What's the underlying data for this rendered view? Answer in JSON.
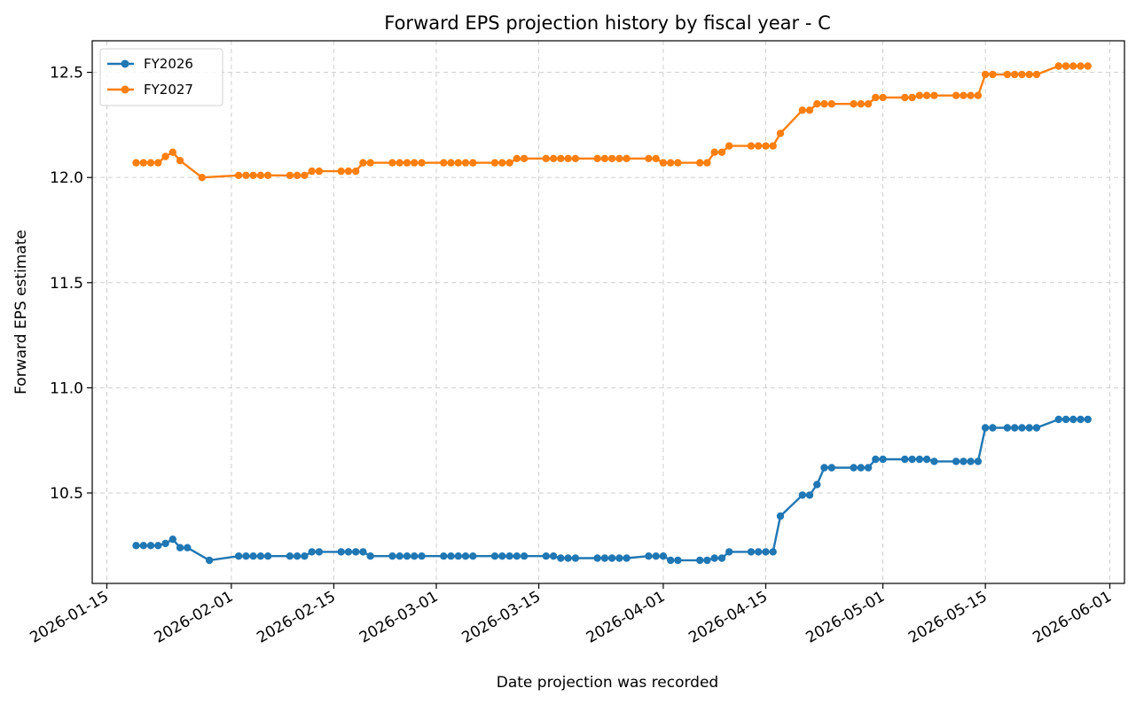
{
  "chart_data": {
    "type": "line",
    "title": "Forward EPS projection history by fiscal year - C",
    "xlabel": "Date projection was recorded",
    "ylabel": "Forward EPS estimate",
    "x_type": "date",
    "xlim": [
      "2026-01-13",
      "2026-06-03"
    ],
    "ylim": [
      10.07,
      12.65
    ],
    "x_ticks": [
      "2026-01-15",
      "2026-02-01",
      "2026-02-15",
      "2026-03-01",
      "2026-03-15",
      "2026-04-01",
      "2026-04-15",
      "2026-05-01",
      "2026-05-15",
      "2026-06-01"
    ],
    "y_ticks": [
      10.5,
      11.0,
      11.5,
      12.0,
      12.5
    ],
    "y_tick_labels": [
      "10.5",
      "11.0",
      "11.5",
      "12.0",
      "12.5"
    ],
    "grid": true,
    "legend_position": "top-left",
    "series": [
      {
        "name": "FY2026",
        "color": "#1f77b4",
        "x": [
          "2026-01-19",
          "2026-01-20",
          "2026-01-21",
          "2026-01-22",
          "2026-01-23",
          "2026-01-24",
          "2026-01-25",
          "2026-01-26",
          "2026-01-29",
          "2026-02-02",
          "2026-02-03",
          "2026-02-04",
          "2026-02-05",
          "2026-02-06",
          "2026-02-09",
          "2026-02-10",
          "2026-02-11",
          "2026-02-12",
          "2026-02-13",
          "2026-02-16",
          "2026-02-17",
          "2026-02-18",
          "2026-02-19",
          "2026-02-20",
          "2026-02-23",
          "2026-02-24",
          "2026-02-25",
          "2026-02-26",
          "2026-02-27",
          "2026-03-02",
          "2026-03-03",
          "2026-03-04",
          "2026-03-05",
          "2026-03-06",
          "2026-03-09",
          "2026-03-10",
          "2026-03-11",
          "2026-03-12",
          "2026-03-13",
          "2026-03-16",
          "2026-03-17",
          "2026-03-18",
          "2026-03-19",
          "2026-03-20",
          "2026-03-23",
          "2026-03-24",
          "2026-03-25",
          "2026-03-26",
          "2026-03-27",
          "2026-03-30",
          "2026-03-31",
          "2026-04-01",
          "2026-04-02",
          "2026-04-03",
          "2026-04-06",
          "2026-04-07",
          "2026-04-08",
          "2026-04-09",
          "2026-04-10",
          "2026-04-13",
          "2026-04-14",
          "2026-04-15",
          "2026-04-16",
          "2026-04-17",
          "2026-04-20",
          "2026-04-21",
          "2026-04-22",
          "2026-04-23",
          "2026-04-24",
          "2026-04-27",
          "2026-04-28",
          "2026-04-29",
          "2026-04-30",
          "2026-05-01",
          "2026-05-04",
          "2026-05-05",
          "2026-05-06",
          "2026-05-07",
          "2026-05-08",
          "2026-05-11",
          "2026-05-12",
          "2026-05-13",
          "2026-05-14",
          "2026-05-15",
          "2026-05-16",
          "2026-05-18",
          "2026-05-19",
          "2026-05-20",
          "2026-05-21",
          "2026-05-22",
          "2026-05-25",
          "2026-05-26",
          "2026-05-27",
          "2026-05-28",
          "2026-05-29"
        ],
        "values": [
          10.25,
          10.25,
          10.25,
          10.25,
          10.26,
          10.28,
          10.24,
          10.24,
          10.18,
          10.2,
          10.2,
          10.2,
          10.2,
          10.2,
          10.2,
          10.2,
          10.2,
          10.22,
          10.22,
          10.22,
          10.22,
          10.22,
          10.22,
          10.2,
          10.2,
          10.2,
          10.2,
          10.2,
          10.2,
          10.2,
          10.2,
          10.2,
          10.2,
          10.2,
          10.2,
          10.2,
          10.2,
          10.2,
          10.2,
          10.2,
          10.2,
          10.19,
          10.19,
          10.19,
          10.19,
          10.19,
          10.19,
          10.19,
          10.19,
          10.2,
          10.2,
          10.2,
          10.18,
          10.18,
          10.18,
          10.18,
          10.19,
          10.19,
          10.22,
          10.22,
          10.22,
          10.22,
          10.22,
          10.39,
          10.49,
          10.49,
          10.54,
          10.62,
          10.62,
          10.62,
          10.62,
          10.62,
          10.66,
          10.66,
          10.66,
          10.66,
          10.66,
          10.66,
          10.65,
          10.65,
          10.65,
          10.65,
          10.65,
          10.81,
          10.81,
          10.81,
          10.81,
          10.81,
          10.81,
          10.81,
          10.85,
          10.85,
          10.85,
          10.85,
          10.85
        ]
      },
      {
        "name": "FY2027",
        "color": "#ff7f0e",
        "x": [
          "2026-01-19",
          "2026-01-20",
          "2026-01-21",
          "2026-01-22",
          "2026-01-23",
          "2026-01-24",
          "2026-01-25",
          "2026-01-28",
          "2026-02-02",
          "2026-02-03",
          "2026-02-04",
          "2026-02-05",
          "2026-02-06",
          "2026-02-09",
          "2026-02-10",
          "2026-02-11",
          "2026-02-12",
          "2026-02-13",
          "2026-02-16",
          "2026-02-17",
          "2026-02-18",
          "2026-02-19",
          "2026-02-20",
          "2026-02-23",
          "2026-02-24",
          "2026-02-25",
          "2026-02-26",
          "2026-02-27",
          "2026-03-02",
          "2026-03-03",
          "2026-03-04",
          "2026-03-05",
          "2026-03-06",
          "2026-03-09",
          "2026-03-10",
          "2026-03-11",
          "2026-03-12",
          "2026-03-13",
          "2026-03-16",
          "2026-03-17",
          "2026-03-18",
          "2026-03-19",
          "2026-03-20",
          "2026-03-23",
          "2026-03-24",
          "2026-03-25",
          "2026-03-26",
          "2026-03-27",
          "2026-03-30",
          "2026-03-31",
          "2026-04-01",
          "2026-04-02",
          "2026-04-03",
          "2026-04-06",
          "2026-04-07",
          "2026-04-08",
          "2026-04-09",
          "2026-04-10",
          "2026-04-13",
          "2026-04-14",
          "2026-04-15",
          "2026-04-16",
          "2026-04-17",
          "2026-04-20",
          "2026-04-21",
          "2026-04-22",
          "2026-04-23",
          "2026-04-24",
          "2026-04-27",
          "2026-04-28",
          "2026-04-29",
          "2026-04-30",
          "2026-05-01",
          "2026-05-04",
          "2026-05-05",
          "2026-05-06",
          "2026-05-07",
          "2026-05-08",
          "2026-05-11",
          "2026-05-12",
          "2026-05-13",
          "2026-05-14",
          "2026-05-15",
          "2026-05-16",
          "2026-05-18",
          "2026-05-19",
          "2026-05-20",
          "2026-05-21",
          "2026-05-22",
          "2026-05-25",
          "2026-05-26",
          "2026-05-27",
          "2026-05-28",
          "2026-05-29"
        ],
        "values": [
          12.07,
          12.07,
          12.07,
          12.07,
          12.1,
          12.12,
          12.08,
          12.0,
          12.01,
          12.01,
          12.01,
          12.01,
          12.01,
          12.01,
          12.01,
          12.01,
          12.03,
          12.03,
          12.03,
          12.03,
          12.03,
          12.07,
          12.07,
          12.07,
          12.07,
          12.07,
          12.07,
          12.07,
          12.07,
          12.07,
          12.07,
          12.07,
          12.07,
          12.07,
          12.07,
          12.07,
          12.09,
          12.09,
          12.09,
          12.09,
          12.09,
          12.09,
          12.09,
          12.09,
          12.09,
          12.09,
          12.09,
          12.09,
          12.09,
          12.09,
          12.07,
          12.07,
          12.07,
          12.07,
          12.07,
          12.12,
          12.12,
          12.15,
          12.15,
          12.15,
          12.15,
          12.15,
          12.21,
          12.32,
          12.32,
          12.35,
          12.35,
          12.35,
          12.35,
          12.35,
          12.35,
          12.38,
          12.38,
          12.38,
          12.38,
          12.39,
          12.39,
          12.39,
          12.39,
          12.39,
          12.39,
          12.39,
          12.49,
          12.49,
          12.49,
          12.49,
          12.49,
          12.49,
          12.49,
          12.53,
          12.53,
          12.53,
          12.53,
          12.53
        ]
      }
    ]
  }
}
